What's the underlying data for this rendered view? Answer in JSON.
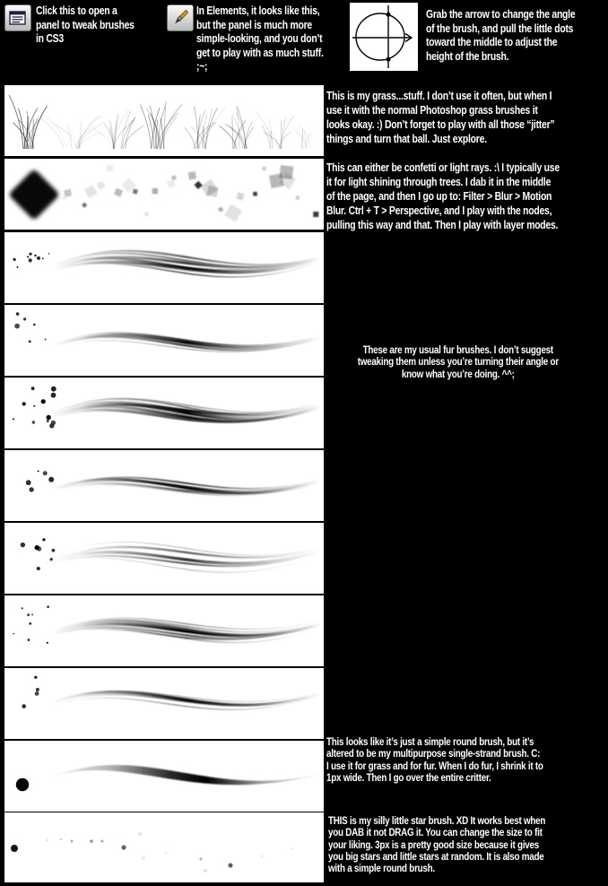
{
  "colors": {
    "background": "#000000",
    "panel": "#ffffff",
    "text": "#ffffff",
    "ink": "#000000",
    "button_face": "#c9c9c9",
    "brush_handle": "#d8922a"
  },
  "header": {
    "cs3_note": "Click this to open a\npanel to tweak brushes\nin CS3",
    "elements_note": "In Elements, it looks like this,\nbut the panel is much more\nsimple-looking, and you don’t\nget to play with as much stuff.\n;~;",
    "angle_note": "Grab the arrow to change the angle\nof the brush, and pull the little dots\ntoward the middle to adjust the\nheight of the brush.",
    "icons": [
      {
        "name": "brushes-panel-icon",
        "meaning": "CS3 toggle-brushes-panel button"
      },
      {
        "name": "paintbrush-icon",
        "meaning": "Elements brush button"
      },
      {
        "name": "brush-angle-circle-icon",
        "meaning": "brush angle / roundness control with arrow and dots"
      }
    ]
  },
  "captions": {
    "grass": {
      "text": "This is my grass...stuff. I don’t use it often, but when I\nuse it with the normal Photoshop grass brushes it\nlooks okay. :) Don’t forget to play with all those “jitter”\nthings and turn that ball. Just explore."
    },
    "confetti": {
      "text": "This can either be confetti or light rays. :\\ I typically use\nit for light shining through trees. I dab it in the middle\nof the page, and then I go up to: Filter > Blur > Motion\nBlur. Ctrl + T > Perspective, and I play with the nodes,\npulling this way and that. Then I play with layer modes."
    },
    "fur": {
      "text": "These are my usual fur brushes. I don’t suggest\ntweaking them unless you’re turning their angle or\nknow what you’re doing. ^^;"
    },
    "single": {
      "text": "This looks like it’s just a simple round brush, but it’s\naltered to be my multipurpose single-strand brush. C:\nI use it for grass and for fur. When I do fur, I shrink it to\n1px wide. Then I go over the entire critter."
    },
    "stars": {
      "text": "THIS is my silly little star brush. XD It works best when\nyou DAB it not DRAG it. You can change the size to fit\nyour liking. 3px is a pretty good size because it gives\nyou big stars and little stars at random. It is also made\nwith a simple round brush."
    }
  },
  "rows": [
    {
      "id": "grass",
      "type": "grass",
      "seed": 7
    },
    {
      "id": "confetti",
      "type": "confetti",
      "seed": 13
    },
    {
      "id": "fur-1",
      "type": "fur",
      "seed": 11,
      "strands": 9,
      "spread": 17,
      "dark": 0.8,
      "dots": 9,
      "dotBig": false,
      "y": 34
    },
    {
      "id": "fur-2",
      "type": "fur",
      "seed": 22,
      "strands": 5,
      "spread": 9,
      "dark": 1.0,
      "dots": 6,
      "dotBig": true,
      "y": 40
    },
    {
      "id": "fur-3",
      "type": "fur",
      "seed": 33,
      "strands": 9,
      "spread": 15,
      "dark": 0.95,
      "dots": 12,
      "dotBig": true,
      "y": 36
    },
    {
      "id": "fur-4",
      "type": "fur",
      "seed": 44,
      "strands": 6,
      "spread": 10,
      "dark": 0.95,
      "dots": 5,
      "dotBig": true,
      "y": 38
    },
    {
      "id": "fur-5",
      "type": "fur",
      "seed": 55,
      "strands": 5,
      "spread": 24,
      "dark": 0.8,
      "dots": 7,
      "dotBig": true,
      "y": 36
    },
    {
      "id": "fur-6",
      "type": "fur",
      "seed": 66,
      "strands": 8,
      "spread": 15,
      "dark": 0.85,
      "dots": 8,
      "dotBig": false,
      "y": 36
    },
    {
      "id": "fur-7",
      "type": "fur",
      "seed": 77,
      "strands": 5,
      "spread": 11,
      "dark": 0.85,
      "dots": 4,
      "dotBig": true,
      "y": 33
    },
    {
      "id": "single-strand",
      "type": "single",
      "seed": 88
    },
    {
      "id": "stars",
      "type": "stars",
      "seed": 99
    }
  ]
}
